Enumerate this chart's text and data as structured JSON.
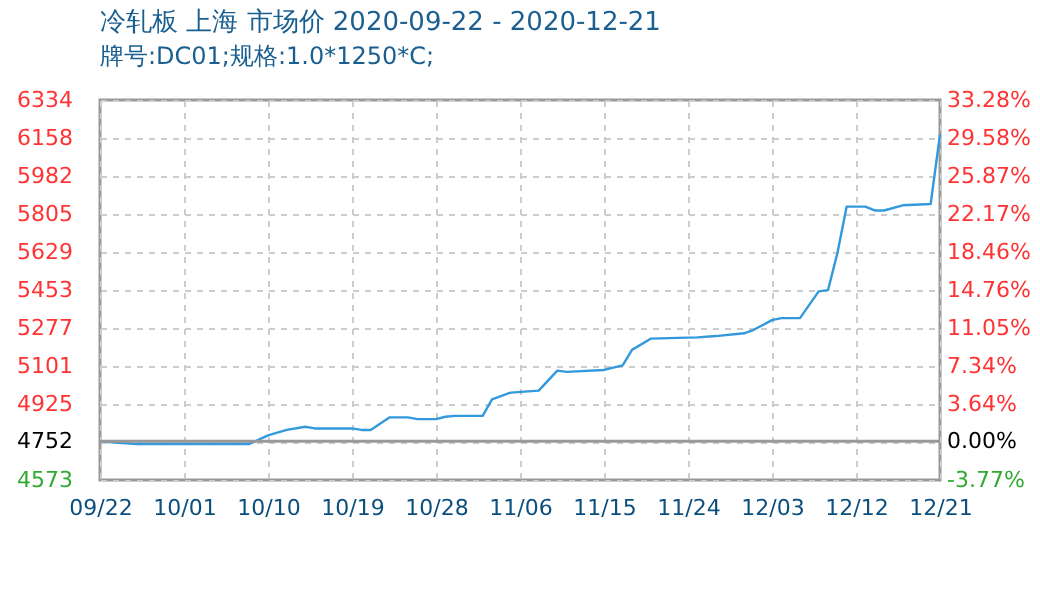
{
  "chart_data": {
    "type": "line",
    "title": "冷轧板 上海 市场价 2020-09-22 - 2020-12-21",
    "subtitle": "牌号:DC01;规格:1.0*1250*C;",
    "x": [
      "2020-09-22",
      "2020-09-24",
      "2020-09-26",
      "2020-10-08",
      "2020-10-10",
      "2020-10-12",
      "2020-10-14",
      "2020-10-15",
      "2020-10-19",
      "2020-10-20",
      "2020-10-21",
      "2020-10-23",
      "2020-10-25",
      "2020-10-26",
      "2020-10-28",
      "2020-10-29",
      "2020-10-30",
      "2020-11-02",
      "2020-11-03",
      "2020-11-05",
      "2020-11-08",
      "2020-11-10",
      "2020-11-11",
      "2020-11-15",
      "2020-11-17",
      "2020-11-18",
      "2020-11-20",
      "2020-11-25",
      "2020-11-27",
      "2020-11-30",
      "2020-12-01",
      "2020-12-03",
      "2020-12-04",
      "2020-12-06",
      "2020-12-08",
      "2020-12-09",
      "2020-12-10",
      "2020-12-11",
      "2020-12-13",
      "2020-12-14",
      "2020-12-15",
      "2020-12-17",
      "2020-12-20",
      "2020-12-21"
    ],
    "series": [
      {
        "color": "#3399dd",
        "values": [
          4752,
          4745,
          4740,
          4740,
          4780,
          4805,
          4820,
          4812,
          4812,
          4805,
          4805,
          4863,
          4863,
          4855,
          4855,
          4866,
          4870,
          4870,
          4947,
          4978,
          4987,
          5080,
          5074,
          5083,
          5104,
          5176,
          5228,
          5234,
          5240,
          5253,
          5268,
          5314,
          5323,
          5323,
          5447,
          5453,
          5623,
          5840,
          5840,
          5822,
          5822,
          5846,
          5852,
          6174
        ]
      }
    ],
    "xlim": [
      "2020-09-22",
      "2020-12-21"
    ],
    "xticks": [
      {
        "value": "2020-09-22",
        "label": "09/22"
      },
      {
        "value": "2020-10-01",
        "label": "10/01"
      },
      {
        "value": "2020-10-10",
        "label": "10/10"
      },
      {
        "value": "2020-10-19",
        "label": "10/19"
      },
      {
        "value": "2020-10-28",
        "label": "10/28"
      },
      {
        "value": "2020-11-06",
        "label": "11/06"
      },
      {
        "value": "2020-11-15",
        "label": "11/15"
      },
      {
        "value": "2020-11-24",
        "label": "11/24"
      },
      {
        "value": "2020-12-03",
        "label": "12/03"
      },
      {
        "value": "2020-12-12",
        "label": "12/12"
      },
      {
        "value": "2020-12-21",
        "label": "12/21"
      }
    ],
    "ylim": [
      4573,
      6334
    ],
    "yticks": [
      4573,
      4752,
      4925,
      5101,
      5277,
      5453,
      5629,
      5805,
      5982,
      6158,
      6334
    ],
    "y2lim": [
      -3.77,
      33.28
    ],
    "y2ticks": [
      {
        "value": -3.77,
        "label": "-3.77%"
      },
      {
        "value": 0,
        "label": "0.00%"
      },
      {
        "value": 3.64,
        "label": "3.64%"
      },
      {
        "value": 7.34,
        "label": "7.34%"
      },
      {
        "value": 11.05,
        "label": "11.05%"
      },
      {
        "value": 14.76,
        "label": "14.76%"
      },
      {
        "value": 18.46,
        "label": "18.46%"
      },
      {
        "value": 22.17,
        "label": "22.17%"
      },
      {
        "value": 25.87,
        "label": "25.87%"
      },
      {
        "value": 29.58,
        "label": "29.58%"
      },
      {
        "value": 33.28,
        "label": "33.28%"
      }
    ],
    "ref_lines": [
      {
        "axis": "y",
        "value": 4752,
        "color": "#999999"
      }
    ],
    "grid": true,
    "marker": "none",
    "line_style": "solid"
  }
}
